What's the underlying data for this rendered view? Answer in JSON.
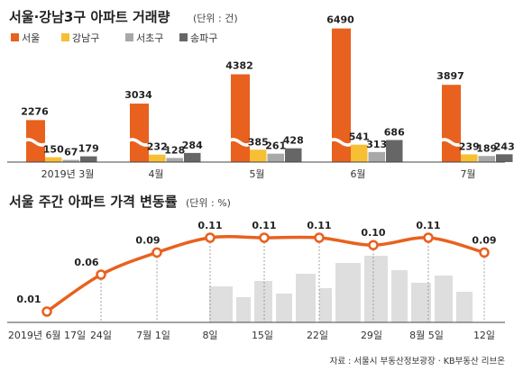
{
  "chart_data": [
    {
      "type": "bar",
      "title": "서울·강남3구 아파트 거래량",
      "unit": "(단위 : 건)",
      "categories": [
        "2019년 3월",
        "4월",
        "5월",
        "6월",
        "7월"
      ],
      "series": [
        {
          "name": "서울",
          "color": "#e8611f",
          "values": [
            2276,
            3034,
            4382,
            6490,
            3897
          ]
        },
        {
          "name": "강남구",
          "color": "#f6bf34",
          "values": [
            150,
            232,
            385,
            541,
            239
          ]
        },
        {
          "name": "서초구",
          "color": "#a8a8a8",
          "values": [
            67,
            128,
            261,
            313,
            189
          ]
        },
        {
          "name": "송파구",
          "color": "#666666",
          "values": [
            179,
            284,
            428,
            686,
            243
          ]
        }
      ],
      "axis_break": true,
      "legend_position": "top-left"
    },
    {
      "type": "line",
      "title": "서울 주간 아파트 가격 변동률",
      "unit": "(단위 : %)",
      "x": [
        "2019년 6월 17일",
        "24일",
        "7월 1일",
        "8일",
        "15일",
        "22일",
        "29일",
        "8월 5일",
        "12일"
      ],
      "values": [
        0.01,
        0.06,
        0.09,
        0.11,
        0.11,
        0.11,
        0.1,
        0.11,
        0.09
      ],
      "labels": [
        "0.01",
        "0.06",
        "0.09",
        "0.11",
        "0.11",
        "0.11",
        "0.10",
        "0.11",
        "0.09"
      ],
      "color": "#e8611f",
      "ylim": [
        0,
        0.12
      ]
    }
  ],
  "source": "자료 : 서울시 부동산정보광장 · KB부동산 리브온"
}
